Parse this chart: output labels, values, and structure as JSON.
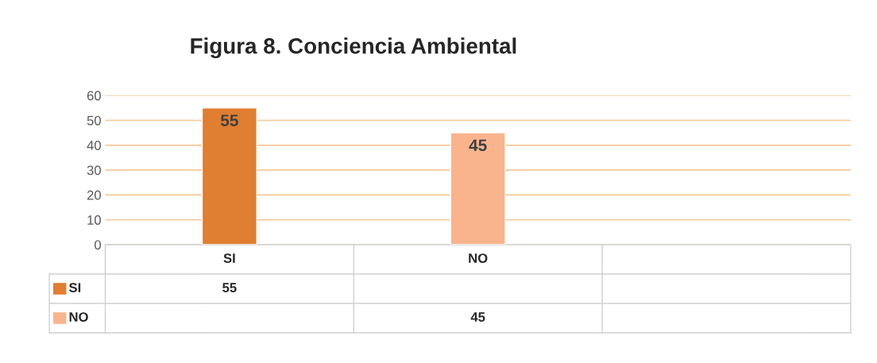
{
  "chart_data": {
    "type": "bar",
    "title": "Figura 8. Conciencia Ambiental",
    "categories": [
      "SI",
      "NO",
      null
    ],
    "series": [
      {
        "name": "SI",
        "color": "#e07e32",
        "values": [
          55,
          null,
          null
        ]
      },
      {
        "name": "NO",
        "color": "#f9b48e",
        "values": [
          null,
          45,
          null
        ]
      }
    ],
    "ylim": [
      0,
      60
    ],
    "yticks": [
      0,
      10,
      20,
      30,
      40,
      50,
      60
    ],
    "grid": "y",
    "legend": "bottom",
    "data_labels": true,
    "annotations": [
      "55",
      "45"
    ]
  }
}
